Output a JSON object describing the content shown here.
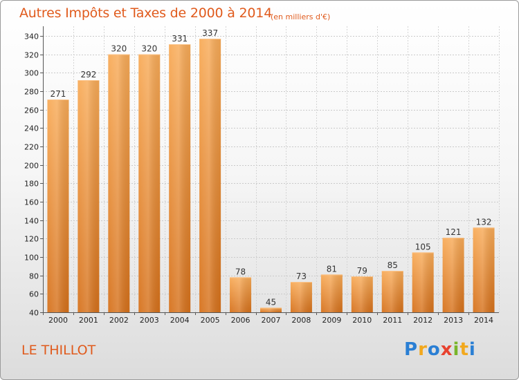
{
  "title": "Autres Impôts et Taxes de 2000 à 2014",
  "subtitle": "(en milliers d'€)",
  "commune": "LE THILLOT",
  "logo": {
    "letters": [
      "P",
      "r",
      "o",
      "x",
      "i",
      "t",
      "i"
    ]
  },
  "colors": {
    "bar_light": "#f7a552",
    "bar_dark": "#d8731c",
    "text_accent": "#e05a1c"
  },
  "chart_data": {
    "type": "bar",
    "title": "Autres Impôts et Taxes de 2000 à 2014",
    "subtitle": "(en milliers d'€)",
    "xlabel": "",
    "ylabel": "",
    "categories": [
      "2000",
      "2001",
      "2002",
      "2003",
      "2004",
      "2005",
      "2006",
      "2007",
      "2008",
      "2009",
      "2010",
      "2011",
      "2012",
      "2013",
      "2014"
    ],
    "values": [
      271,
      292,
      320,
      320,
      331,
      337,
      78,
      45,
      73,
      81,
      79,
      85,
      105,
      121,
      132
    ],
    "ylim": [
      40,
      340
    ],
    "yticks": [
      40,
      60,
      80,
      100,
      120,
      140,
      160,
      180,
      200,
      220,
      240,
      260,
      280,
      300,
      320,
      340
    ],
    "grid": true
  }
}
